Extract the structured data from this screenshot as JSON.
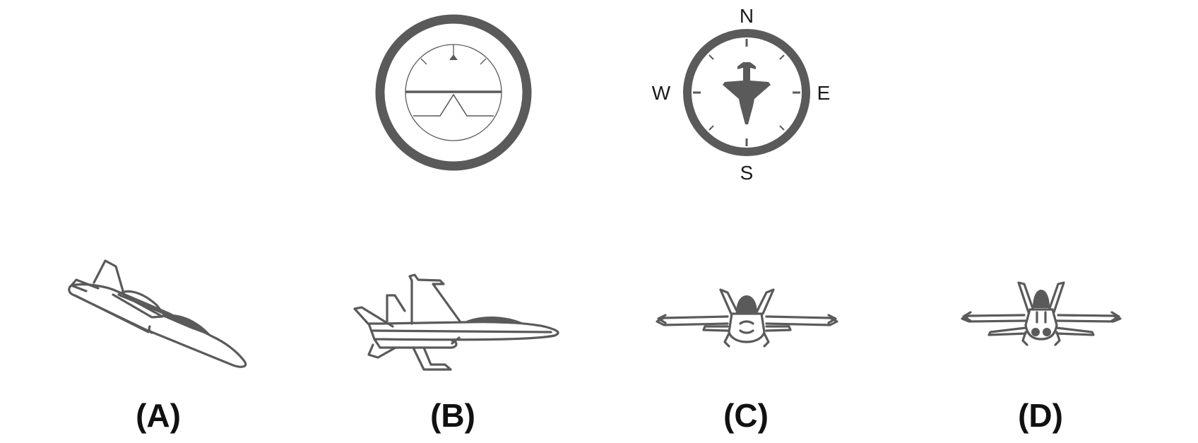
{
  "compass": {
    "north": "N",
    "east": "E",
    "south": "S",
    "west": "W"
  },
  "options": [
    {
      "label": "(A)"
    },
    {
      "label": "(B)"
    },
    {
      "label": "(C)"
    },
    {
      "label": "(D)"
    }
  ],
  "colors": {
    "ink": "#5a5a5a",
    "text": "#111111",
    "background": "#ffffff"
  },
  "icons": [
    "attitude-indicator-icon",
    "heading-indicator-icon",
    "jet-icon"
  ]
}
